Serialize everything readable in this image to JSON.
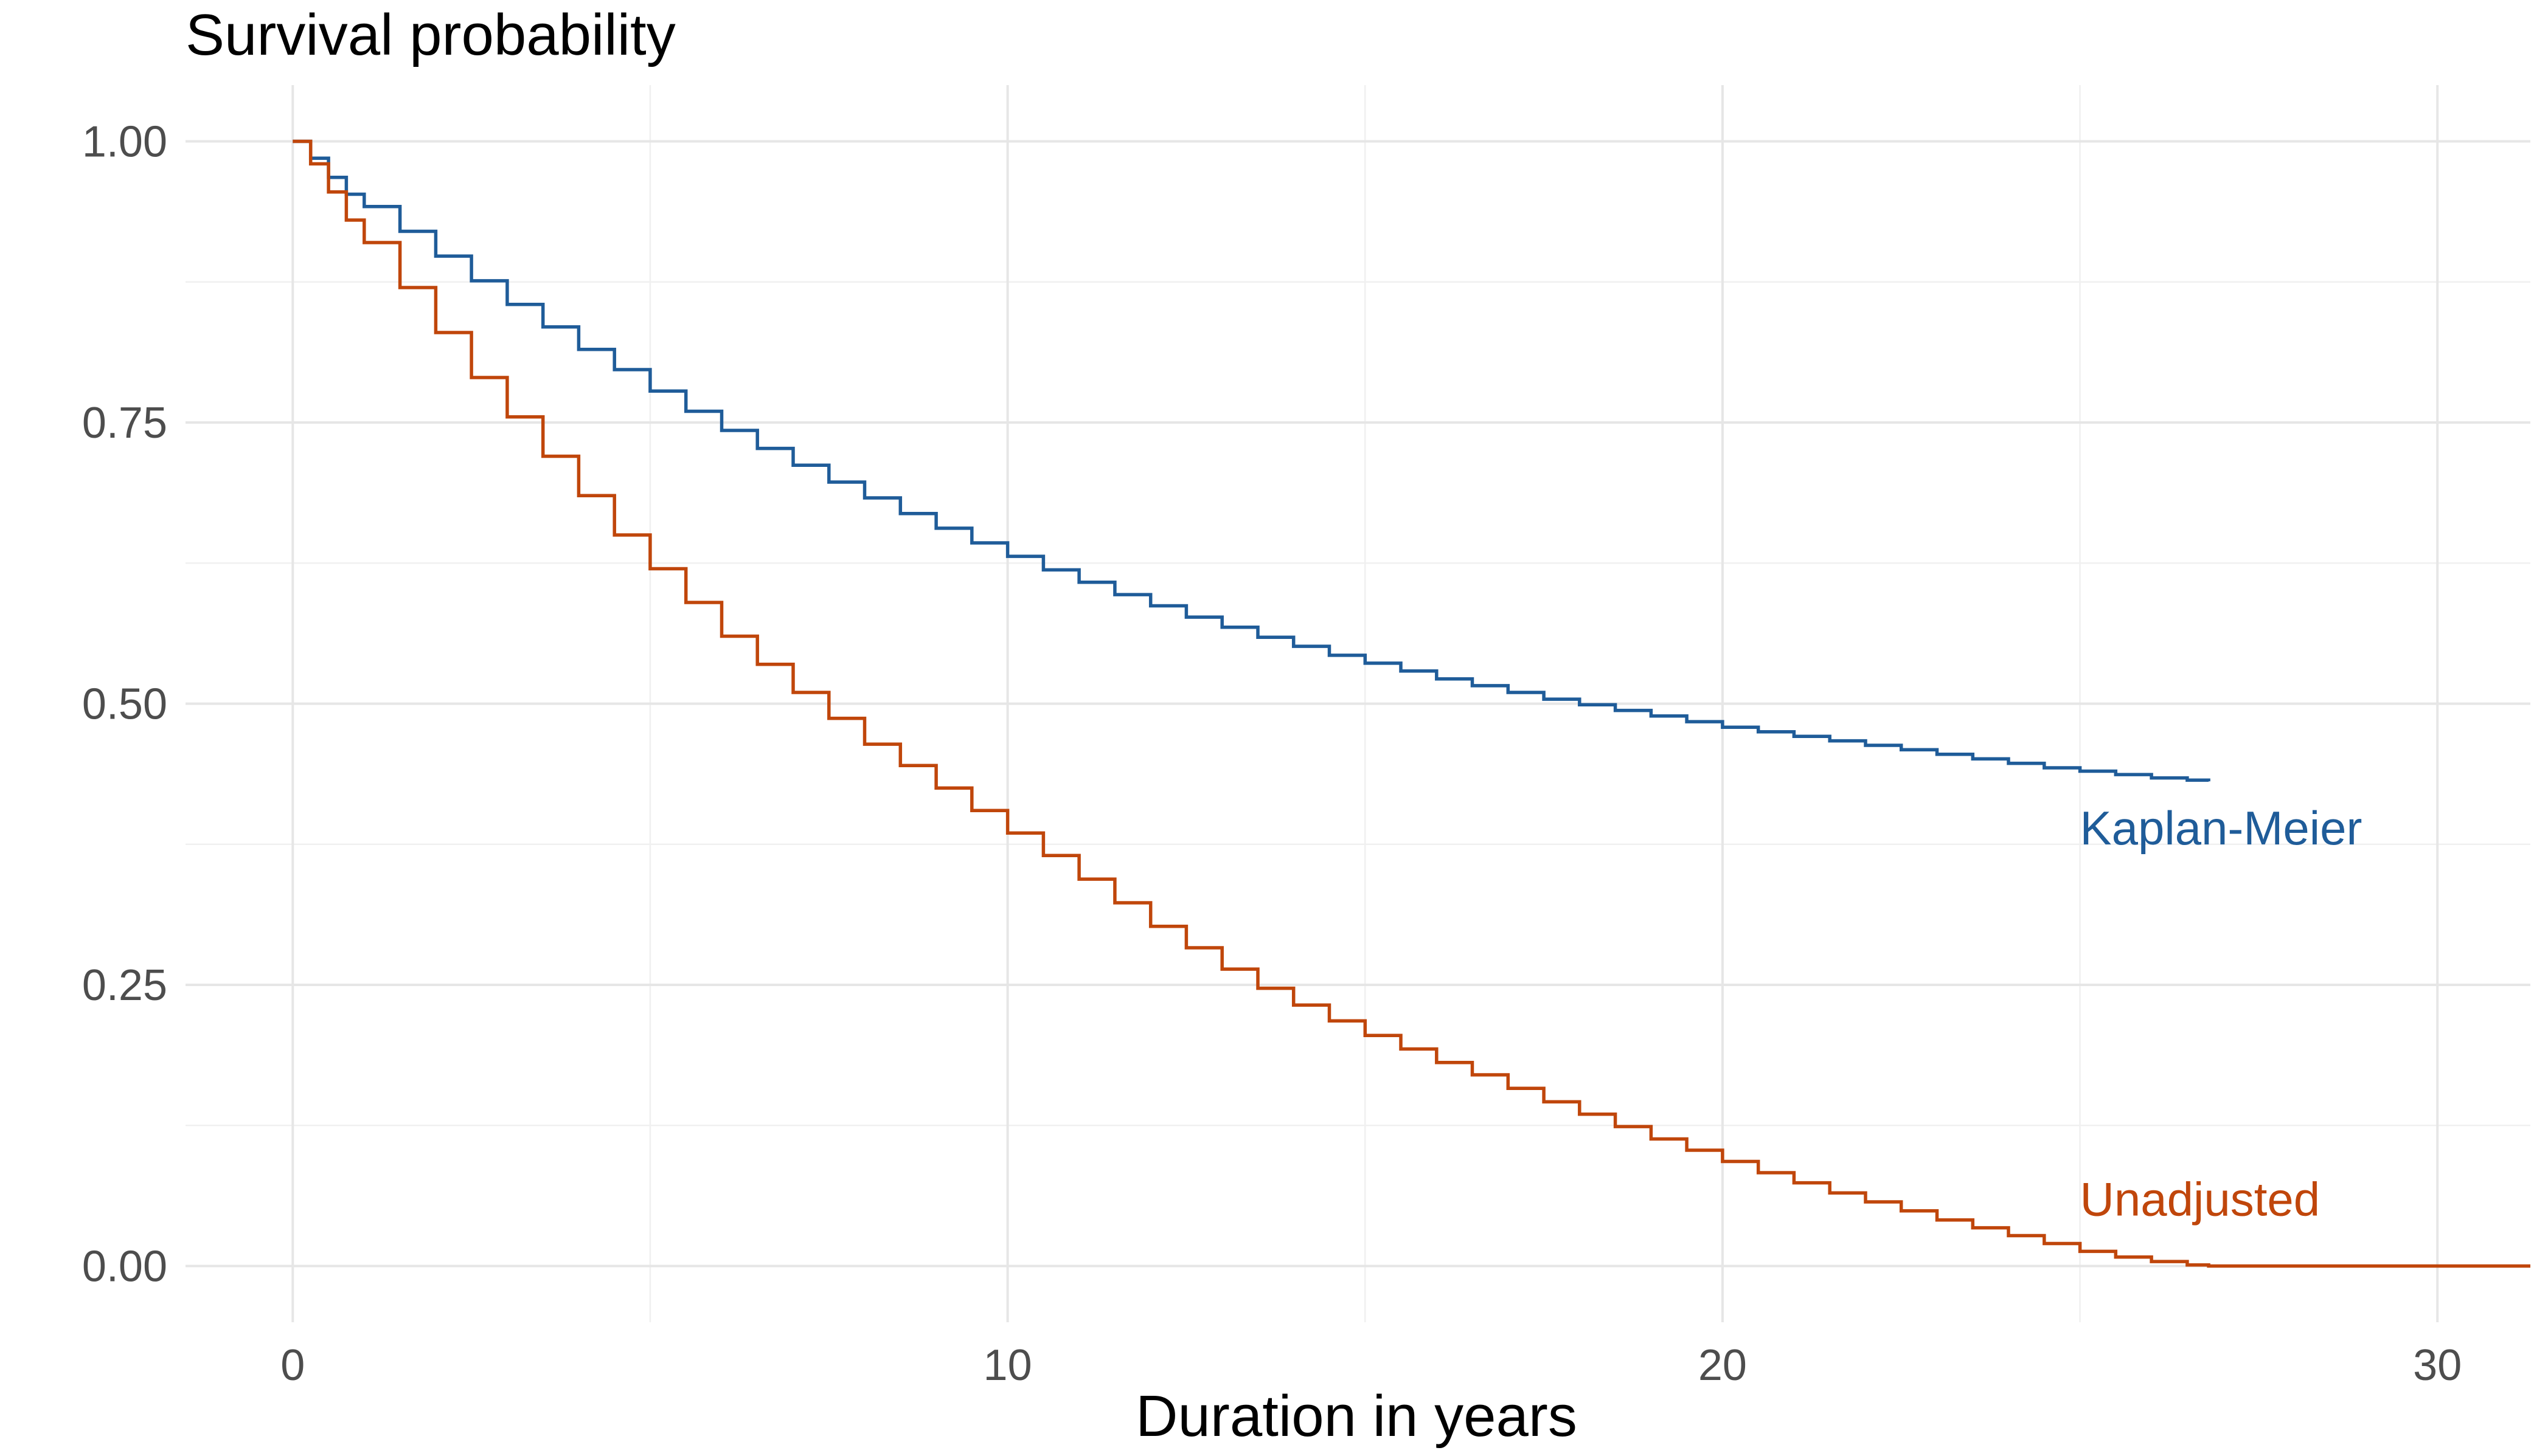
{
  "chart_data": {
    "type": "line",
    "title": "Survival probability",
    "xlabel": "Duration in years",
    "ylabel": "",
    "xlim": [
      -1.5,
      31.3
    ],
    "ylim": [
      -0.05,
      1.05
    ],
    "x_ticks": [
      0,
      10,
      20,
      30
    ],
    "x_tick_labels": [
      "0",
      "10",
      "20",
      "30"
    ],
    "x_minor_ticks": [
      5,
      15,
      25
    ],
    "y_ticks": [
      0,
      0.25,
      0.5,
      0.75,
      1.0
    ],
    "y_tick_labels": [
      "0.00",
      "0.25",
      "0.50",
      "0.75",
      "1.00"
    ],
    "y_minor_ticks": [
      0.125,
      0.375,
      0.625,
      0.875
    ],
    "grid": true,
    "legend": "none (direct labels at right)",
    "series": [
      {
        "name": "Kaplan-Meier",
        "color": "#1f5c99",
        "step": true,
        "label_position": [
          25,
          0.375
        ],
        "x": [
          0,
          0.1,
          0.25,
          0.5,
          0.75,
          1,
          1.5,
          2,
          2.5,
          3,
          3.5,
          4,
          4.5,
          5,
          5.5,
          6,
          6.5,
          7,
          7.5,
          8,
          8.5,
          9,
          9.5,
          10,
          10.5,
          11,
          11.5,
          12,
          12.5,
          13,
          13.5,
          14,
          14.5,
          15,
          15.5,
          16,
          16.5,
          17,
          17.5,
          18,
          18.5,
          19,
          19.5,
          20,
          20.5,
          21,
          21.5,
          22,
          22.5,
          23,
          23.5,
          24,
          24.5,
          25,
          25.5,
          26,
          26.5,
          26.8
        ],
        "y": [
          1.0,
          1.0,
          0.985,
          0.968,
          0.953,
          0.942,
          0.92,
          0.898,
          0.876,
          0.855,
          0.835,
          0.815,
          0.797,
          0.778,
          0.76,
          0.743,
          0.727,
          0.712,
          0.697,
          0.683,
          0.669,
          0.656,
          0.643,
          0.631,
          0.619,
          0.608,
          0.597,
          0.587,
          0.577,
          0.568,
          0.559,
          0.551,
          0.543,
          0.536,
          0.529,
          0.522,
          0.516,
          0.51,
          0.504,
          0.499,
          0.494,
          0.489,
          0.484,
          0.479,
          0.475,
          0.471,
          0.467,
          0.463,
          0.459,
          0.455,
          0.451,
          0.447,
          0.443,
          0.44,
          0.437,
          0.434,
          0.432,
          0.431
        ]
      },
      {
        "name": "Unadjusted",
        "color": "#c0460b",
        "step": true,
        "label_position": [
          25,
          0.045
        ],
        "x": [
          0,
          0.1,
          0.25,
          0.5,
          0.75,
          1,
          1.5,
          2,
          2.5,
          3,
          3.5,
          4,
          4.5,
          5,
          5.5,
          6,
          6.5,
          7,
          7.5,
          8,
          8.5,
          9,
          9.5,
          10,
          10.5,
          11,
          11.5,
          12,
          12.5,
          13,
          13.5,
          14,
          14.5,
          15,
          15.5,
          16,
          16.5,
          17,
          17.5,
          18,
          18.5,
          19,
          19.5,
          20,
          20.5,
          21,
          21.5,
          22,
          22.5,
          23,
          23.5,
          24,
          24.5,
          25,
          25.5,
          26,
          26.5,
          26.8,
          31.3
        ],
        "y": [
          1.0,
          1.0,
          0.98,
          0.955,
          0.93,
          0.91,
          0.87,
          0.83,
          0.79,
          0.755,
          0.72,
          0.685,
          0.65,
          0.62,
          0.59,
          0.56,
          0.535,
          0.51,
          0.487,
          0.464,
          0.445,
          0.425,
          0.405,
          0.385,
          0.365,
          0.344,
          0.323,
          0.302,
          0.283,
          0.264,
          0.247,
          0.232,
          0.218,
          0.205,
          0.193,
          0.181,
          0.17,
          0.158,
          0.146,
          0.135,
          0.124,
          0.113,
          0.103,
          0.093,
          0.083,
          0.074,
          0.065,
          0.057,
          0.049,
          0.041,
          0.034,
          0.027,
          0.02,
          0.013,
          0.008,
          0.004,
          0.001,
          0.0,
          0.0
        ]
      }
    ]
  }
}
